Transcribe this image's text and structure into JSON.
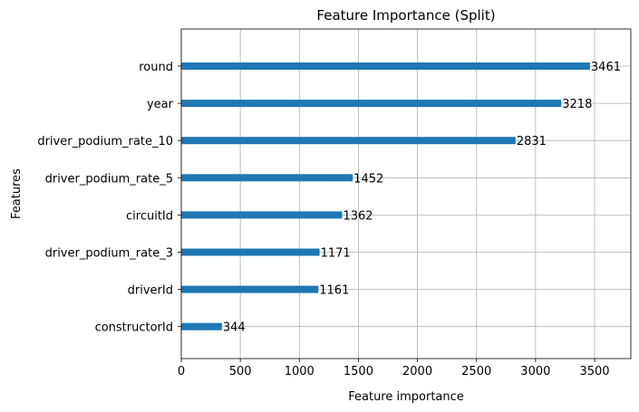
{
  "chart_data": {
    "type": "bar",
    "orientation": "horizontal",
    "title": "Feature Importance (Split)",
    "xlabel": "Feature importance",
    "ylabel": "Features",
    "categories": [
      "round",
      "year",
      "driver_podium_rate_10",
      "driver_podium_rate_5",
      "circuitId",
      "driver_podium_rate_3",
      "driverId",
      "constructorId"
    ],
    "values": [
      3461,
      3218,
      2831,
      1452,
      1362,
      1171,
      1161,
      344
    ],
    "value_labels": [
      "3461",
      "3218",
      "2831",
      "1452",
      "1362",
      "1171",
      "1161",
      "344"
    ],
    "xticks": [
      0,
      500,
      1000,
      1500,
      2000,
      2500,
      3000,
      3500
    ],
    "xtick_labels": [
      "0",
      "500",
      "1000",
      "1500",
      "2000",
      "2500",
      "3000",
      "3500"
    ],
    "xlim": [
      0,
      3807
    ],
    "grid": true,
    "bar_color": "#1f77b4",
    "legend": "none"
  }
}
